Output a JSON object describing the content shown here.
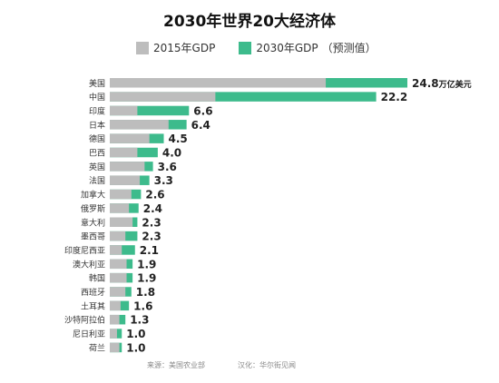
{
  "chart_data": {
    "type": "bar",
    "title": "2030年世界20大经济体",
    "legend": {
      "placement": "top",
      "series_2015_label": "2015年GDP",
      "series_2030_label": "2030年GDP",
      "note": "（预测值）"
    },
    "unit_label": "万亿美元",
    "categories": [
      "美国",
      "中国",
      "印度",
      "日本",
      "德国",
      "巴西",
      "英国",
      "法国",
      "加拿大",
      "俄罗斯",
      "意大利",
      "墨西哥",
      "印度尼西亚",
      "澳大利亚",
      "韩国",
      "西班牙",
      "土耳其",
      "沙特阿拉伯",
      "尼日利亚",
      "荷兰"
    ],
    "series": [
      {
        "name": "2015年GDP",
        "color": "#bdbdbd",
        "values": [
          18.0,
          8.8,
          2.3,
          4.9,
          3.3,
          2.3,
          2.9,
          2.5,
          1.8,
          1.6,
          1.9,
          1.3,
          1.0,
          1.4,
          1.4,
          1.3,
          0.9,
          0.8,
          0.6,
          0.8
        ]
      },
      {
        "name": "2030年GDP",
        "color": "#3dbb8c",
        "values": [
          24.8,
          22.2,
          6.6,
          6.4,
          4.5,
          4.0,
          3.6,
          3.3,
          2.6,
          2.4,
          2.3,
          2.3,
          2.1,
          1.9,
          1.9,
          1.8,
          1.6,
          1.3,
          1.0,
          1.0
        ]
      }
    ],
    "value_labels": [
      "24.8",
      "22.2",
      "6.6",
      "6.4",
      "4.5",
      "4.0",
      "3.6",
      "3.3",
      "2.6",
      "2.4",
      "2.3",
      "2.3",
      "2.1",
      "1.9",
      "1.9",
      "1.8",
      "1.6",
      "1.3",
      "1.0",
      "1.0"
    ],
    "xlim": [
      0,
      24.8
    ],
    "grid": false
  },
  "footer": {
    "source": "来源：美国农业部",
    "translation": "汉化：华尔街见闻"
  }
}
